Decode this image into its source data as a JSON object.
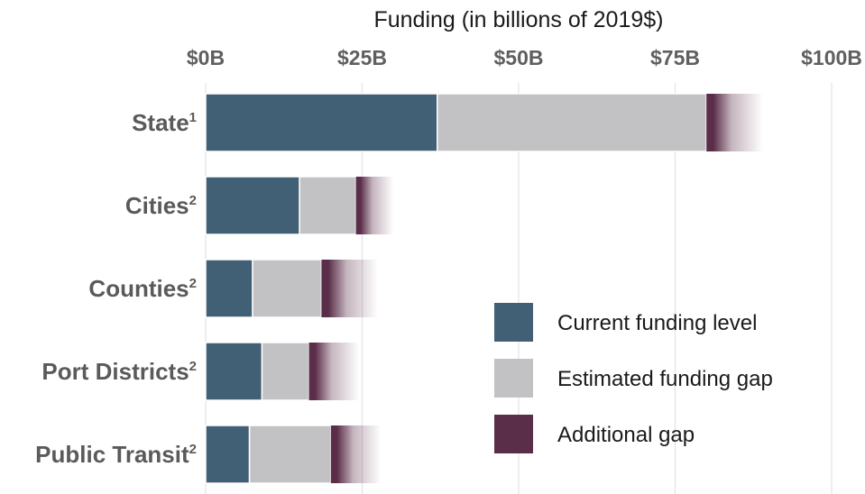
{
  "chart_data": {
    "type": "bar",
    "orientation": "horizontal",
    "stacked": true,
    "title": "",
    "xlabel": "Funding  (in billions of 2019$)",
    "xlim": [
      0,
      100
    ],
    "xticks": [
      0,
      25,
      50,
      75,
      100
    ],
    "xtick_labels": [
      "$0B",
      "$25B",
      "$50B",
      "$75B",
      "$100B"
    ],
    "x_axis_position": "top",
    "grid": true,
    "legend_position": "bottom-right",
    "categories": [
      {
        "label": "State",
        "sup": "1"
      },
      {
        "label": "Cities",
        "sup": "2"
      },
      {
        "label": "Counties",
        "sup": "2"
      },
      {
        "label": "Port Districts",
        "sup": "2"
      },
      {
        "label": "Public Transit",
        "sup": "2"
      }
    ],
    "series": [
      {
        "name": "Current funding level",
        "color": "#415f75",
        "values": [
          37,
          15,
          7.5,
          9,
          7
        ]
      },
      {
        "name": "Estimated funding gap",
        "color": "#c2c1c3",
        "values": [
          43,
          9,
          11,
          7.5,
          13
        ]
      },
      {
        "name": "Additional gap",
        "color": "#5a2d48",
        "faded": true,
        "values": [
          9,
          6,
          9,
          8,
          8
        ]
      }
    ]
  }
}
